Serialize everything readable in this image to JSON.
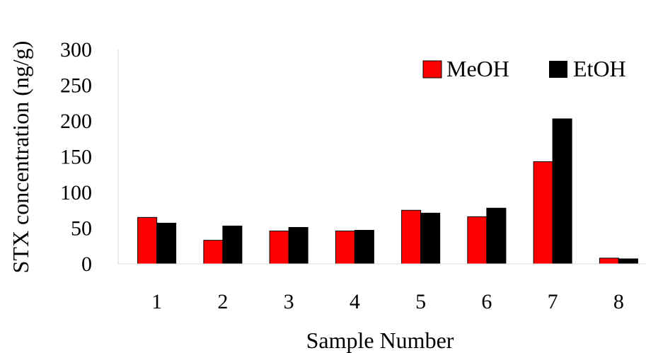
{
  "chart_data": {
    "type": "bar",
    "title": "",
    "xlabel": "Sample Number",
    "ylabel": "STX concentration (ng/g)",
    "categories": [
      "1",
      "2",
      "3",
      "4",
      "5",
      "6",
      "7",
      "8"
    ],
    "ylim": [
      0,
      300
    ],
    "yticks": [
      "0",
      "50",
      "100",
      "150",
      "200",
      "250",
      "300"
    ],
    "grid": false,
    "legend_position": "top-right",
    "series": [
      {
        "name": "MeOH",
        "color": "#ff0000",
        "values": [
          65,
          33,
          46,
          46,
          75,
          66,
          143,
          8
        ]
      },
      {
        "name": "EtOH",
        "color": "#000000",
        "values": [
          57,
          53,
          51,
          47,
          71,
          78,
          203,
          7
        ]
      }
    ]
  }
}
